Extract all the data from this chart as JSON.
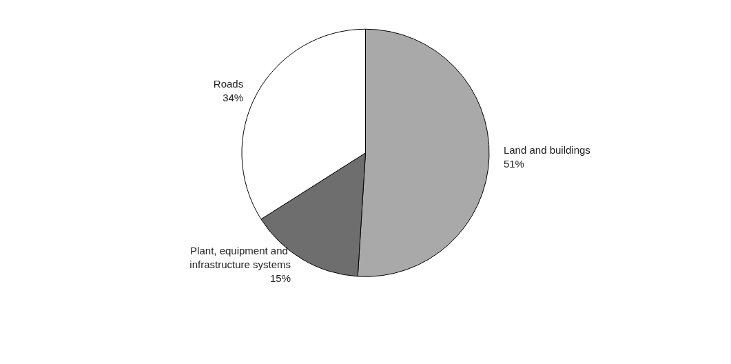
{
  "chart_data": {
    "type": "pie",
    "categories": [
      "Land and buildings",
      "Plant, equipment and infrastructure systems",
      "Roads"
    ],
    "values": [
      51,
      15,
      34
    ],
    "colors": [
      "#a9a9a9",
      "#6e6e6e",
      "#ffffff"
    ],
    "value_labels": [
      "51%",
      "15%",
      "34%"
    ],
    "legend": false
  }
}
